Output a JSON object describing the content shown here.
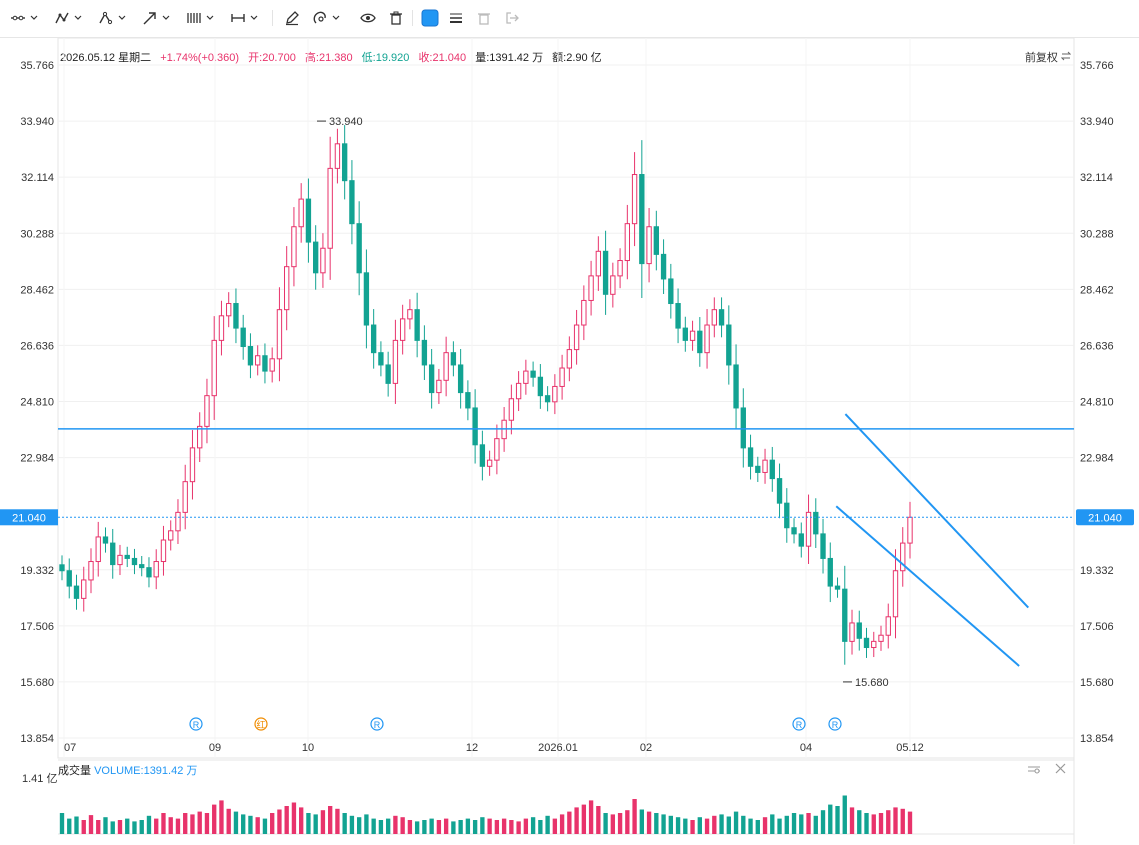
{
  "toolbar": {
    "tools": [
      "line-tool-icon",
      "multi-line-tool-icon",
      "polyline-tool-icon",
      "arrow-tool-icon",
      "fib-tool-icon",
      "range-tool-icon",
      "pen-icon",
      "magnet-icon",
      "eye-icon",
      "trash-icon",
      "color-swatch",
      "line-style-icon",
      "delete-disabled-icon",
      "exit-icon"
    ],
    "accent": "#2196f3"
  },
  "header": {
    "date": "2026.05.12 星期二",
    "change": "+1.74%(+0.360)",
    "open": "开:20.700",
    "high": "高:21.380",
    "low": "低:19.920",
    "close": "收:21.040",
    "volume": "量:1391.42 万",
    "amount": "额:2.90 亿",
    "adjust": "前复权"
  },
  "volume_panel": {
    "title": "成交量",
    "value": "VOLUME:1391.42 万",
    "scale_label": "1.41 亿"
  },
  "chart_data": {
    "type": "candlestick",
    "colors": {
      "up": "#e8336b",
      "down": "#12a392",
      "line": "#2196f3",
      "grid": "#f0f0f0"
    },
    "y_ticks": [
      "35.766",
      "33.940",
      "32.114",
      "30.288",
      "28.462",
      "26.636",
      "24.810",
      "22.984",
      "19.332",
      "17.506",
      "15.680",
      "13.854"
    ],
    "ylim": [
      13.854,
      35.766
    ],
    "x_ticks": [
      "07",
      "09",
      "10",
      "12",
      "2026.01",
      "02",
      "04",
      "05.12"
    ],
    "current_price": "21.040",
    "current_value": 21.04,
    "high_label": "33.940",
    "low_label": "15.680",
    "horizontal_line": 23.92,
    "channel": {
      "upper": [
        [
          0.775,
          24.4
        ],
        [
          0.955,
          18.1
        ]
      ],
      "lower": [
        [
          0.766,
          21.4
        ],
        [
          0.946,
          16.2
        ]
      ]
    },
    "event_markers": [
      {
        "label": "R",
        "color": "#2196f3"
      },
      {
        "label": "红",
        "color": "#f08c00"
      },
      {
        "label": "R",
        "color": "#2196f3"
      },
      {
        "label": "R",
        "color": "#2196f3"
      },
      {
        "label": "R",
        "color": "#2196f3"
      }
    ],
    "closes": [
      19.3,
      18.8,
      18.4,
      19.0,
      19.6,
      20.4,
      20.2,
      19.5,
      19.8,
      19.7,
      19.5,
      19.4,
      19.1,
      19.6,
      20.3,
      20.6,
      21.2,
      22.2,
      23.3,
      24.0,
      25.0,
      26.8,
      27.6,
      28.0,
      27.2,
      26.6,
      26.0,
      26.3,
      25.8,
      26.2,
      27.8,
      29.2,
      30.5,
      31.4,
      30.0,
      29.0,
      29.8,
      32.4,
      33.2,
      32.0,
      30.6,
      29.0,
      27.3,
      26.4,
      26.0,
      25.4,
      26.8,
      27.5,
      27.8,
      26.8,
      26.0,
      25.1,
      25.5,
      26.4,
      26.0,
      25.1,
      24.6,
      23.4,
      22.7,
      22.9,
      23.6,
      24.2,
      24.9,
      25.4,
      25.8,
      25.6,
      25.0,
      24.8,
      25.3,
      25.9,
      26.5,
      27.3,
      28.1,
      28.9,
      29.7,
      28.3,
      28.9,
      29.4,
      30.6,
      32.2,
      29.3,
      30.5,
      29.6,
      28.8,
      28.0,
      27.2,
      26.8,
      27.1,
      26.4,
      27.3,
      27.8,
      27.3,
      26.0,
      24.6,
      23.3,
      22.7,
      22.5,
      22.9,
      22.3,
      21.5,
      20.7,
      20.5,
      20.1,
      21.2,
      20.5,
      19.7,
      18.8,
      18.7,
      17.0,
      17.6,
      17.1,
      16.8,
      17.0,
      17.2,
      17.8,
      19.3,
      20.2,
      21.04
    ],
    "volumes": [
      0.3,
      0.22,
      0.25,
      0.2,
      0.27,
      0.2,
      0.24,
      0.18,
      0.2,
      0.22,
      0.18,
      0.2,
      0.26,
      0.22,
      0.3,
      0.24,
      0.22,
      0.3,
      0.28,
      0.32,
      0.3,
      0.42,
      0.48,
      0.36,
      0.32,
      0.28,
      0.26,
      0.24,
      0.22,
      0.3,
      0.35,
      0.4,
      0.45,
      0.38,
      0.3,
      0.28,
      0.34,
      0.4,
      0.36,
      0.3,
      0.26,
      0.24,
      0.28,
      0.22,
      0.2,
      0.22,
      0.26,
      0.24,
      0.2,
      0.18,
      0.2,
      0.22,
      0.2,
      0.22,
      0.18,
      0.2,
      0.22,
      0.2,
      0.24,
      0.22,
      0.2,
      0.22,
      0.2,
      0.18,
      0.22,
      0.24,
      0.2,
      0.26,
      0.22,
      0.28,
      0.32,
      0.38,
      0.42,
      0.48,
      0.4,
      0.3,
      0.28,
      0.3,
      0.34,
      0.5,
      0.35,
      0.32,
      0.3,
      0.28,
      0.26,
      0.24,
      0.22,
      0.2,
      0.24,
      0.22,
      0.26,
      0.28,
      0.25,
      0.32,
      0.26,
      0.22,
      0.2,
      0.24,
      0.28,
      0.22,
      0.26,
      0.3,
      0.28,
      0.3,
      0.26,
      0.34,
      0.42,
      0.4,
      0.55,
      0.38,
      0.34,
      0.3,
      0.28,
      0.3,
      0.34,
      0.38,
      0.36,
      0.32
    ]
  }
}
